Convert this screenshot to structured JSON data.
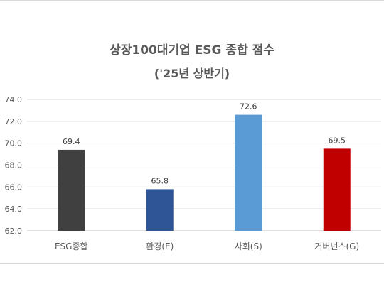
{
  "chart_data": {
    "type": "bar",
    "title": "상장100대기업 ESG 종합 점수",
    "subtitle": "('25년 상반기)",
    "categories": [
      "ESG종합",
      "환경(E)",
      "사회(S)",
      "거버넌스(G)"
    ],
    "values": [
      69.4,
      65.8,
      72.6,
      69.5
    ],
    "data_labels": [
      "69.4",
      "65.8",
      "72.6",
      "69.5"
    ],
    "colors": [
      "#404040",
      "#2f5597",
      "#5b9bd5",
      "#c00000"
    ],
    "ylim": [
      62.0,
      74.0
    ],
    "yticks": [
      "62.0",
      "64.0",
      "66.0",
      "68.0",
      "70.0",
      "72.0",
      "74.0"
    ],
    "grid": true,
    "legend": "none"
  }
}
